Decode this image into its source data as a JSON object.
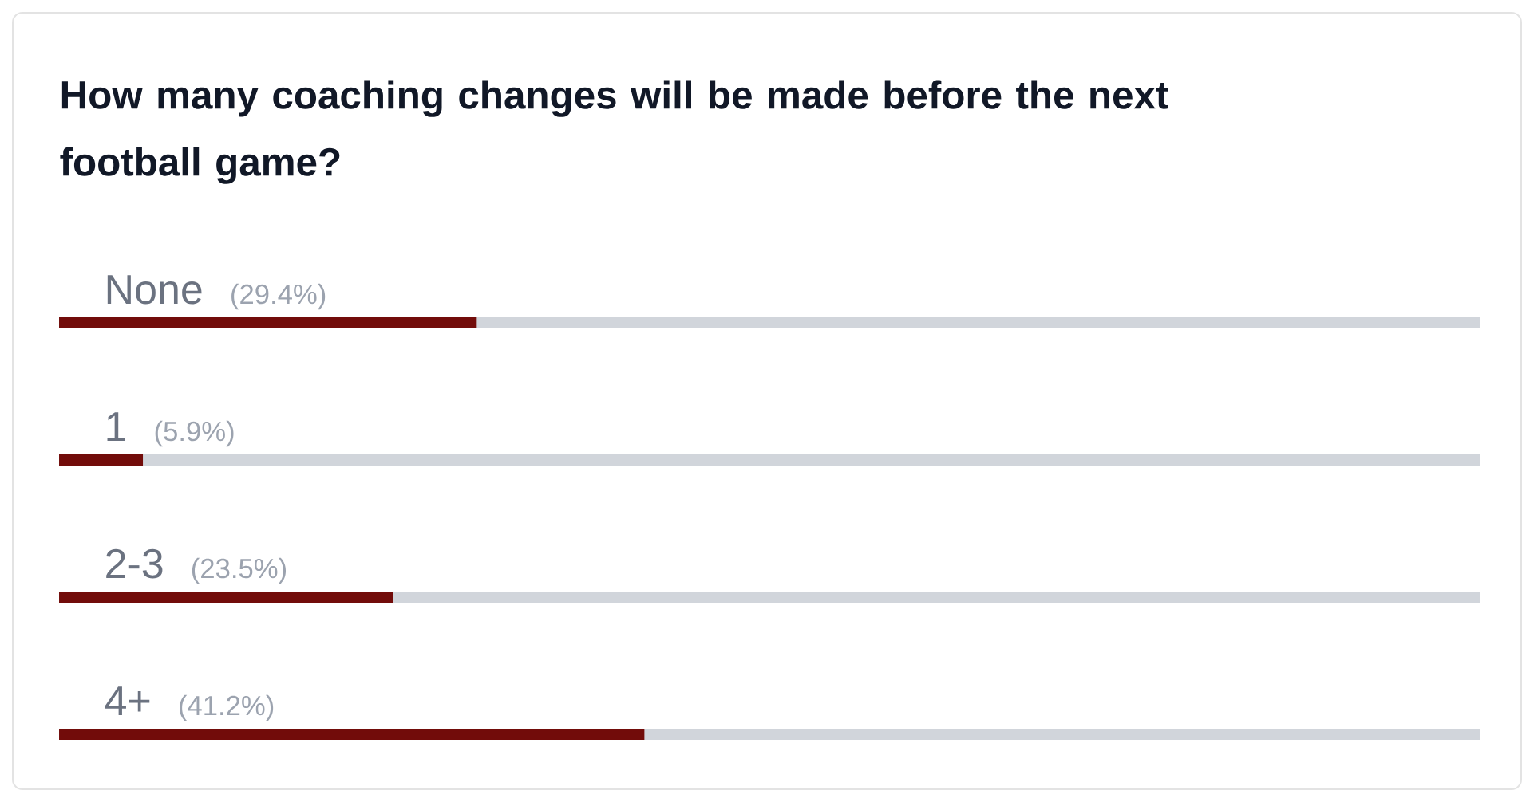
{
  "chart_data": {
    "type": "bar",
    "orientation": "horizontal",
    "title": "How many coaching changes will be made before the next football game?",
    "categories": [
      "None",
      "1",
      "2-3",
      "4+"
    ],
    "values": [
      29.4,
      5.9,
      23.5,
      41.2
    ],
    "value_labels": [
      "(29.4%)",
      "(5.9%)",
      "(23.5%)",
      "(41.2%)"
    ],
    "color": "#720c0a",
    "tick_labels": false
  }
}
